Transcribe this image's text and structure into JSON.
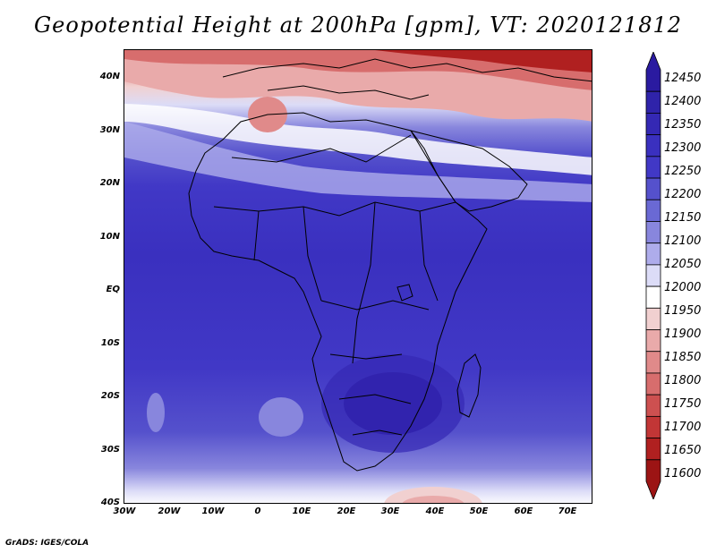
{
  "title": "Geopotential Height at 200hPa [gpm], VT: 2020121812",
  "credit": "GrADS: IGES/COLA",
  "y_axis_labels": [
    "40N",
    "30N",
    "20N",
    "10N",
    "EQ",
    "10S",
    "20S",
    "30S",
    "40S"
  ],
  "x_axis_labels": [
    "30W",
    "20W",
    "10W",
    "0",
    "10E",
    "20E",
    "30E",
    "40E",
    "50E",
    "60E",
    "70E"
  ],
  "colorbar": {
    "labels": [
      "12450",
      "12400",
      "12350",
      "12300",
      "12250",
      "12200",
      "12150",
      "12100",
      "12050",
      "12000",
      "11950",
      "11900",
      "11850",
      "11800",
      "11750",
      "11700",
      "11650",
      "11600"
    ],
    "colors": [
      "#2a1aa0",
      "#2f23aa",
      "#3428b4",
      "#3a30bf",
      "#4138c6",
      "#5551cc",
      "#6a69d4",
      "#8886dd",
      "#aeaceb",
      "#dcdcf7",
      "#ffffff",
      "#f1d0d0",
      "#e9aaaa",
      "#e08a8a",
      "#d76d6d",
      "#cd5050",
      "#c23636",
      "#b02020",
      "#9c1414"
    ]
  },
  "colors": {
    "land_outline": "#000000",
    "background": "#ffffff"
  }
}
